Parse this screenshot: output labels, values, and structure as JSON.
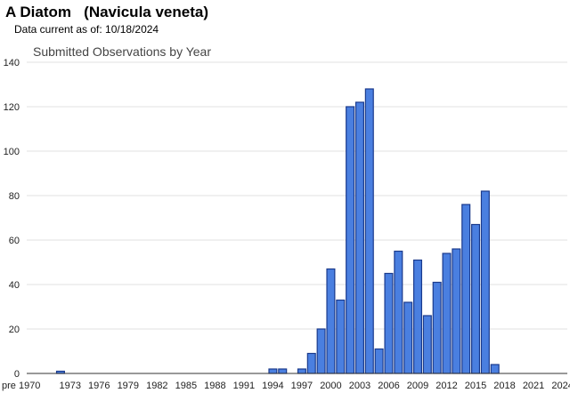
{
  "header": {
    "title": "A Diatom   (Navicula veneta)",
    "subtitle": "Data current as of: 10/18/2024"
  },
  "colors": {
    "bar_fill": "#4a7fe0",
    "bar_stroke": "#1a3a8c",
    "grid": "#e2e2e2",
    "axis": "#333333"
  },
  "chart_data": {
    "type": "bar",
    "title": "Submitted Observations by Year",
    "xlabel": "",
    "ylabel": "",
    "ylim": [
      0,
      140
    ],
    "yticks": [
      0,
      20,
      40,
      60,
      80,
      100,
      120,
      140
    ],
    "grid": true,
    "categories": [
      "pre 1970",
      "1970",
      "1971",
      "1972",
      "1973",
      "1974",
      "1975",
      "1976",
      "1977",
      "1978",
      "1979",
      "1980",
      "1981",
      "1982",
      "1983",
      "1984",
      "1985",
      "1986",
      "1987",
      "1988",
      "1989",
      "1990",
      "1991",
      "1992",
      "1993",
      "1994",
      "1995",
      "1996",
      "1997",
      "1998",
      "1999",
      "2000",
      "2001",
      "2002",
      "2003",
      "2004",
      "2005",
      "2006",
      "2007",
      "2008",
      "2009",
      "2010",
      "2011",
      "2012",
      "2013",
      "2014",
      "2015",
      "2016",
      "2017",
      "2018",
      "2019",
      "2020",
      "2021",
      "2022",
      "2023",
      "2024"
    ],
    "values": [
      0,
      0,
      0,
      1,
      0,
      0,
      0,
      0,
      0,
      0,
      0,
      0,
      0,
      0,
      0,
      0,
      0,
      0,
      0,
      0,
      0,
      0,
      0,
      0,
      0,
      2,
      2,
      0,
      2,
      9,
      20,
      47,
      33,
      120,
      122,
      128,
      11,
      45,
      55,
      32,
      51,
      26,
      41,
      54,
      56,
      76,
      67,
      82,
      4,
      0,
      0,
      0,
      0,
      0,
      0,
      0
    ],
    "xtick_labels": [
      "pre 1970",
      "1973",
      "1976",
      "1979",
      "1982",
      "1985",
      "1988",
      "1991",
      "1994",
      "1997",
      "2000",
      "2003",
      "2006",
      "2009",
      "2012",
      "2015",
      "2018",
      "2021",
      "2024"
    ]
  }
}
